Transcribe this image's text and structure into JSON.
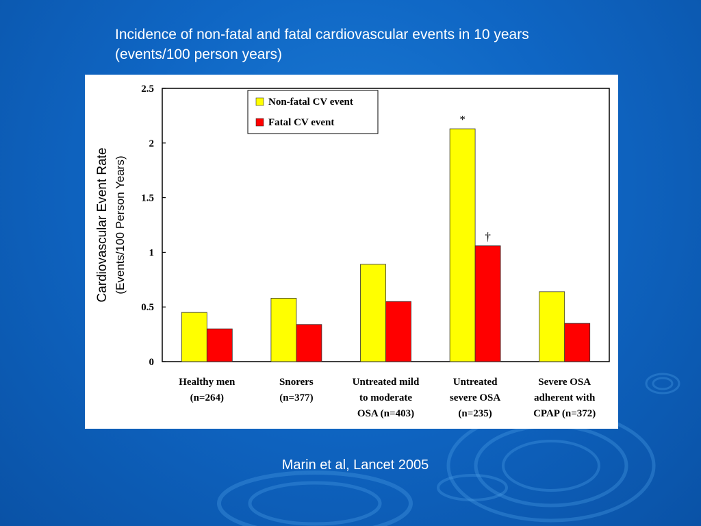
{
  "slide": {
    "title_line1": "Incidence of non-fatal and fatal cardiovascular events in 10 years",
    "title_line2": "(events/100 person years)",
    "citation": "Marin et al, Lancet 2005"
  },
  "chart_data": {
    "type": "bar",
    "ylabel_line1": "Cardiovascular Event Rate",
    "ylabel_line2": "(Events/100 Person Years)",
    "ylim": [
      0,
      2.5
    ],
    "yticks": [
      0,
      0.5,
      1,
      1.5,
      2,
      2.5
    ],
    "ytick_labels": [
      "0",
      "0.5",
      "1",
      "1.5",
      "2",
      "2.5"
    ],
    "grid": false,
    "legend_position": "top-left",
    "categories": [
      {
        "lines": [
          "Healthy men",
          "(n=264)"
        ]
      },
      {
        "lines": [
          "Snorers",
          "(n=377)"
        ]
      },
      {
        "lines": [
          "Untreated mild",
          "to moderate",
          "OSA (n=403)"
        ]
      },
      {
        "lines": [
          "Untreated",
          "severe OSA",
          "(n=235)"
        ]
      },
      {
        "lines": [
          "Severe OSA",
          "adherent with",
          "CPAP (n=372)"
        ]
      }
    ],
    "series": [
      {
        "name": "Non-fatal CV event",
        "color": "#ffff00",
        "values": [
          0.45,
          0.58,
          0.89,
          2.13,
          0.64
        ]
      },
      {
        "name": "Fatal CV event",
        "color": "#ff0000",
        "values": [
          0.3,
          0.34,
          0.55,
          1.06,
          0.35
        ]
      }
    ],
    "annotations": [
      {
        "category_index": 3,
        "series_index": 0,
        "text": "*"
      },
      {
        "category_index": 3,
        "series_index": 1,
        "text": "†"
      }
    ]
  }
}
